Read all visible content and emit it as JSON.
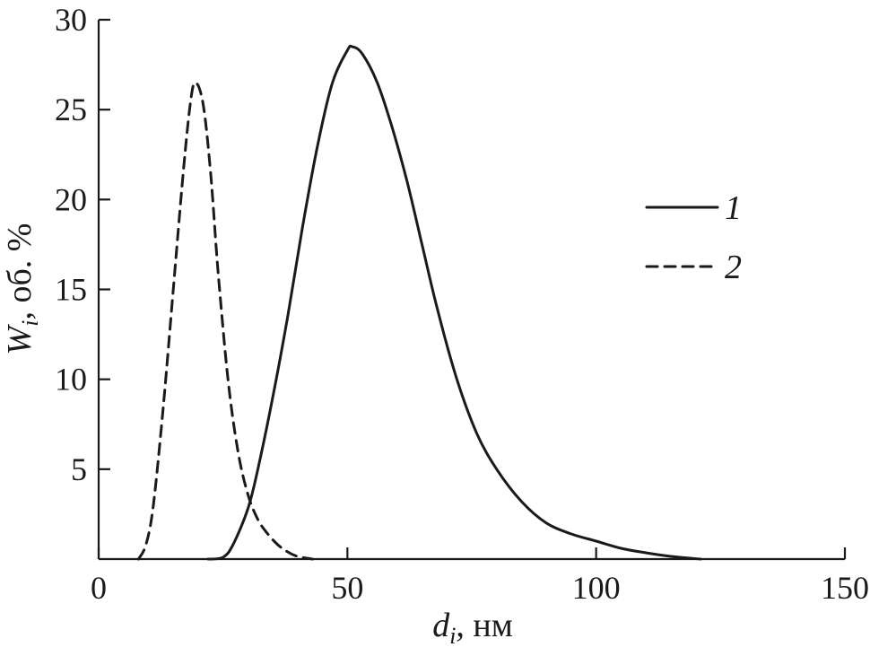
{
  "chart_data": {
    "type": "line",
    "xlabel": {
      "main": "d",
      "sub": "i",
      "rest": ", нм"
    },
    "ylabel": {
      "main": "W",
      "sub": "i",
      "rest": ", об. %"
    },
    "xlim": [
      0,
      150
    ],
    "ylim": [
      0,
      30
    ],
    "x_ticks": [
      0,
      50,
      100,
      150
    ],
    "y_ticks": [
      5,
      10,
      15,
      20,
      25,
      30
    ],
    "x_tick_labels": [
      "0",
      "50",
      "100",
      "150"
    ],
    "y_tick_labels": [
      "5",
      "10",
      "15",
      "20",
      "25",
      "30"
    ],
    "grid": false,
    "legend_position": "right",
    "series": [
      {
        "name": "1",
        "style": "solid",
        "color": "#1a1a1a",
        "x": [
          22,
          25,
          27,
          30,
          32,
          35,
          38,
          41,
          44,
          47,
          50,
          51,
          53,
          56,
          59,
          62,
          65,
          68,
          72,
          76,
          80,
          85,
          90,
          95,
          100,
          105,
          110,
          115,
          121
        ],
        "y": [
          0,
          0.1,
          0.8,
          2.8,
          5,
          9,
          13.5,
          18.5,
          23,
          26.5,
          28.3,
          28.5,
          28.1,
          26.5,
          24,
          21,
          17.5,
          14,
          10,
          7,
          5,
          3.2,
          2,
          1.4,
          1.0,
          0.6,
          0.35,
          0.15,
          0
        ]
      },
      {
        "name": "2",
        "style": "dashed",
        "color": "#1a1a1a",
        "x": [
          8,
          9.5,
          11,
          13,
          15,
          17,
          18.5,
          19.5,
          21,
          22.5,
          24,
          26,
          28,
          30,
          32,
          34,
          36,
          38,
          40,
          43
        ],
        "y": [
          0,
          0.8,
          3,
          8.5,
          15,
          21.5,
          25.5,
          26.5,
          25.3,
          21.5,
          16,
          10,
          6,
          3.6,
          2.2,
          1.4,
          0.8,
          0.4,
          0.15,
          0
        ]
      }
    ]
  }
}
